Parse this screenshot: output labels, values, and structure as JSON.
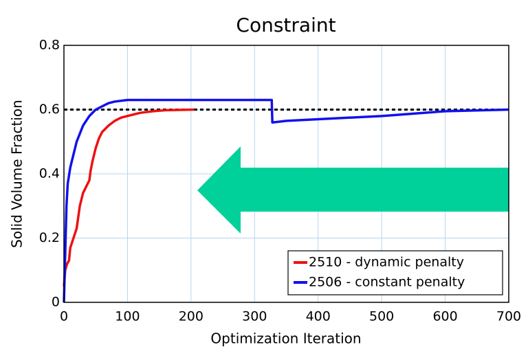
{
  "chart_data": {
    "type": "line",
    "title": "Constraint",
    "x_label": "Optimization Iteration",
    "y_label": "Solid Volume Fraction",
    "xlim": [
      0,
      700
    ],
    "ylim": [
      0,
      0.8
    ],
    "xticks": [
      0,
      100,
      200,
      300,
      400,
      500,
      600,
      700
    ],
    "yticks": [
      0,
      0.2,
      0.4,
      0.6,
      0.8
    ],
    "grid": true,
    "legend": "lower right",
    "reference_line": 0.6,
    "series": [
      {
        "name": "2510 - dynamic penalty",
        "color": "#ee1111",
        "x": [
          0,
          2,
          5,
          8,
          10,
          15,
          20,
          25,
          30,
          35,
          40,
          42,
          45,
          50,
          55,
          60,
          70,
          80,
          90,
          100,
          120,
          140,
          160,
          205
        ],
        "values": [
          0.05,
          0.1,
          0.12,
          0.13,
          0.17,
          0.2,
          0.23,
          0.3,
          0.34,
          0.36,
          0.38,
          0.41,
          0.44,
          0.48,
          0.51,
          0.53,
          0.55,
          0.565,
          0.575,
          0.58,
          0.59,
          0.595,
          0.598,
          0.6
        ]
      },
      {
        "name": "2506 - constant penalty",
        "color": "#1111ee",
        "x": [
          0,
          2,
          4,
          6,
          10,
          15,
          20,
          30,
          40,
          50,
          60,
          70,
          80,
          100,
          150,
          200,
          300,
          327,
          328,
          350,
          400,
          500,
          600,
          700
        ],
        "values": [
          0.0,
          0.15,
          0.3,
          0.37,
          0.42,
          0.46,
          0.5,
          0.55,
          0.58,
          0.6,
          0.61,
          0.62,
          0.625,
          0.63,
          0.63,
          0.63,
          0.63,
          0.63,
          0.56,
          0.565,
          0.57,
          0.58,
          0.595,
          0.6
        ]
      }
    ]
  }
}
